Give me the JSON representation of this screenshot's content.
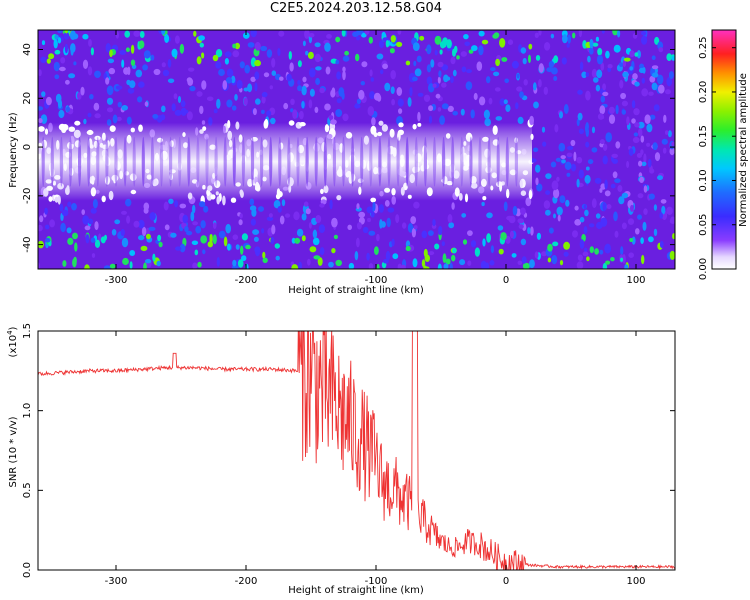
{
  "title": "C2E5.2024.203.12.58.G04",
  "colors": {
    "snr_line": "#ee3333",
    "background": "#ffffff",
    "spectrogram_base": "#6a1fe0"
  },
  "chart_data": [
    {
      "type": "heatmap",
      "title": "C2E5.2024.203.12.58.G04",
      "xlabel": "Height of straight line (km)",
      "ylabel": "Frequency (Hz)",
      "xlim": [
        -360,
        130
      ],
      "ylim": [
        -50,
        48
      ],
      "x_ticks": [
        "-300",
        "-200",
        "-100",
        "0",
        "100"
      ],
      "y_ticks": [
        "40",
        "20",
        "0",
        "-20",
        "-40"
      ],
      "colorbar": {
        "label": "Normalized spectral amplitude",
        "range": [
          0,
          0.27
        ],
        "ticks": [
          "0.00",
          "0.05",
          "0.10",
          "0.15",
          "0.20",
          "0.25"
        ],
        "colormap": "rainbow (white-purple-blue-cyan-green-yellow-red-magenta)"
      },
      "features": {
        "bright_band_center_hz": -6,
        "bright_band_half_width_hz": 16,
        "bright_band_end_height_km": 20
      }
    },
    {
      "type": "line",
      "xlabel": "Height of straight line (km)",
      "ylabel": "SNR (10 * v/v)",
      "y_multiplier": "(x10",
      "y_multiplier_exp": "4",
      "y_multiplier_close": ")",
      "xlim": [
        -360,
        130
      ],
      "ylim": [
        0,
        1.5
      ],
      "x_ticks": [
        "-300",
        "-200",
        "-100",
        "0",
        "100"
      ],
      "y_ticks": [
        "0.0",
        "0.5",
        "1.0",
        "1.5"
      ],
      "series": [
        {
          "x": [
            -360,
            -340,
            -320,
            -300,
            -280,
            -260,
            -250,
            -240,
            -220,
            -200,
            -180,
            -160,
            -150,
            -140,
            -130,
            -120,
            -110,
            -100,
            -95,
            -90,
            -85,
            -80,
            -75,
            -70,
            -65,
            -60,
            -55,
            -50,
            -45,
            -40,
            -35,
            -30,
            -25,
            -20,
            -15,
            -10,
            -5,
            0,
            10,
            20,
            40,
            60,
            80,
            100,
            130
          ],
          "y": [
            1.23,
            1.24,
            1.25,
            1.25,
            1.26,
            1.27,
            1.27,
            1.27,
            1.26,
            1.26,
            1.26,
            1.25,
            1.22,
            1.13,
            1.02,
            0.92,
            0.8,
            0.68,
            0.55,
            0.52,
            0.5,
            0.45,
            0.42,
            0.35,
            0.32,
            0.28,
            0.22,
            0.18,
            0.15,
            0.14,
            0.15,
            0.18,
            0.17,
            0.16,
            0.13,
            0.1,
            0.07,
            0.05,
            0.04,
            0.03,
            0.02,
            0.02,
            0.02,
            0.02,
            0.02
          ]
        }
      ]
    }
  ]
}
